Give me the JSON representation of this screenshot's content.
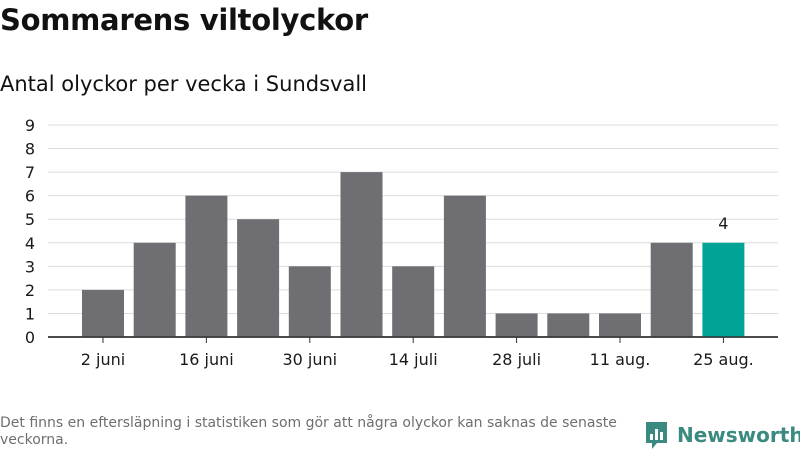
{
  "header": {
    "title": "Sommarens viltolyckor",
    "subtitle": "Antal olyckor per vecka i Sundsvall"
  },
  "footer": {
    "note": "Det finns en eftersläpning i statistiken som gör att några olyckor kan saknas de senaste veckorna.",
    "brand": "Newsworthy"
  },
  "colors": {
    "bar": "#6e6e73",
    "highlight": "#00a396",
    "brand": "#3a8a80"
  },
  "icons": {
    "brand_logo": "bar-chart-speech-bubble-icon"
  },
  "chart_data": {
    "type": "bar",
    "title": "Sommarens viltolyckor",
    "subtitle": "Antal olyckor per vecka i Sundsvall",
    "ylim": [
      0,
      9
    ],
    "yticks": [
      "0",
      "1",
      "2",
      "3",
      "4",
      "5",
      "6",
      "7",
      "8",
      "9"
    ],
    "grid": true,
    "values": [
      2,
      4,
      6,
      5,
      3,
      7,
      3,
      6,
      1,
      1,
      1,
      4,
      4
    ],
    "x_tick_labels": [
      "2 juni",
      "",
      "16 juni",
      "",
      "30 juni",
      "",
      "14 juli",
      "",
      "28 juli",
      "",
      "11 aug.",
      "",
      "25 aug."
    ],
    "highlight_index": 12,
    "data_labels": [
      {
        "index": 12,
        "text": "4"
      }
    ]
  }
}
